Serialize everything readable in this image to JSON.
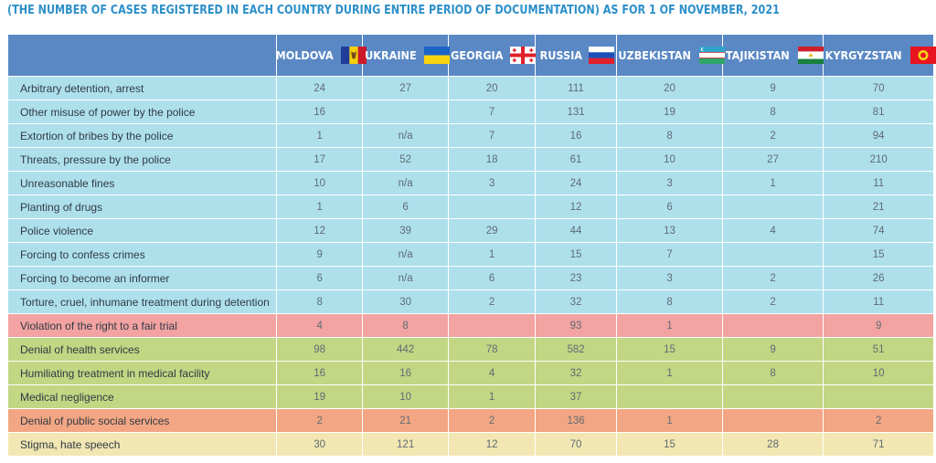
{
  "subtitle": "(THE NUMBER OF CASES REGISTERED IN EACH COUNTRY DURING ENTIRE PERIOD OF DOCUMENTATION) AS FOR 1 OF NOVEMBER, 2021",
  "colors": {
    "header": "#5a88c4",
    "police": "#aee0ec",
    "trial": "#f2a3a2",
    "health": "#c3d683",
    "social": "#f3a683",
    "stigma": "#f2e7b3",
    "subtitle": "#2c8fc9"
  },
  "countries": [
    {
      "name": "MOLDOVA",
      "flag": "moldova-flag-icon"
    },
    {
      "name": "UKRAINE",
      "flag": "ukraine-flag-icon"
    },
    {
      "name": "GEORGIA",
      "flag": "georgia-flag-icon"
    },
    {
      "name": "RUSSIA",
      "flag": "russia-flag-icon"
    },
    {
      "name": "UZBEKISTAN",
      "flag": "uzbekistan-flag-icon"
    },
    {
      "name": "TAJIKISTAN",
      "flag": "tajikistan-flag-icon"
    },
    {
      "name": "KYRGYZSTAN",
      "flag": "kyrgyzstan-flag-icon"
    }
  ],
  "rows": [
    {
      "label": "Arbitrary detention, arrest",
      "category": "police",
      "values": [
        "24",
        "27",
        "20",
        "111",
        "20",
        "9",
        "70"
      ]
    },
    {
      "label": "Other misuse of power by the police",
      "category": "police",
      "values": [
        "16",
        "",
        "7",
        "131",
        "19",
        "8",
        "81"
      ]
    },
    {
      "label": "Extortion of bribes by the police",
      "category": "police",
      "values": [
        "1",
        "n/a",
        "7",
        "16",
        "8",
        "2",
        "94"
      ]
    },
    {
      "label": "Threats, pressure by the police",
      "category": "police",
      "values": [
        "17",
        "52",
        "18",
        "61",
        "10",
        "27",
        "210"
      ]
    },
    {
      "label": "Unreasonable fines",
      "category": "police",
      "values": [
        "10",
        "n/a",
        "3",
        "24",
        "3",
        "1",
        "11"
      ]
    },
    {
      "label": "Planting of drugs",
      "category": "police",
      "values": [
        "1",
        "6",
        "",
        "12",
        "6",
        "",
        "21"
      ]
    },
    {
      "label": "Police violence",
      "category": "police",
      "values": [
        "12",
        "39",
        "29",
        "44",
        "13",
        "4",
        "74"
      ]
    },
    {
      "label": "Forcing to confess crimes",
      "category": "police",
      "values": [
        "9",
        "n/a",
        "1",
        "15",
        "7",
        "",
        "15"
      ]
    },
    {
      "label": "Forcing to become an informer",
      "category": "police",
      "values": [
        "6",
        "n/a",
        "6",
        "23",
        "3",
        "2",
        "26"
      ]
    },
    {
      "label": "Torture, cruel, inhumane treatment during detention",
      "category": "police",
      "values": [
        "8",
        "30",
        "2",
        "32",
        "8",
        "2",
        "11"
      ]
    },
    {
      "label": "Violation of the right to a fair trial",
      "category": "trial",
      "values": [
        "4",
        "8",
        "",
        "93",
        "1",
        "",
        "9"
      ]
    },
    {
      "label": "Denial of health services",
      "category": "health",
      "values": [
        "98",
        "442",
        "78",
        "582",
        "15",
        "9",
        "51"
      ]
    },
    {
      "label": "Humiliating treatment in medical facility",
      "category": "health",
      "values": [
        "16",
        "16",
        "4",
        "32",
        "1",
        "8",
        "10"
      ]
    },
    {
      "label": "Medical negligence",
      "category": "health",
      "values": [
        "19",
        "10",
        "1",
        "37",
        "",
        "",
        ""
      ]
    },
    {
      "label": "Denial of public social services",
      "category": "social",
      "values": [
        "2",
        "21",
        "2",
        "136",
        "1",
        "",
        "2"
      ]
    },
    {
      "label": "Stigma, hate speech",
      "category": "stigma",
      "values": [
        "30",
        "121",
        "12",
        "70",
        "15",
        "28",
        "71"
      ]
    }
  ]
}
